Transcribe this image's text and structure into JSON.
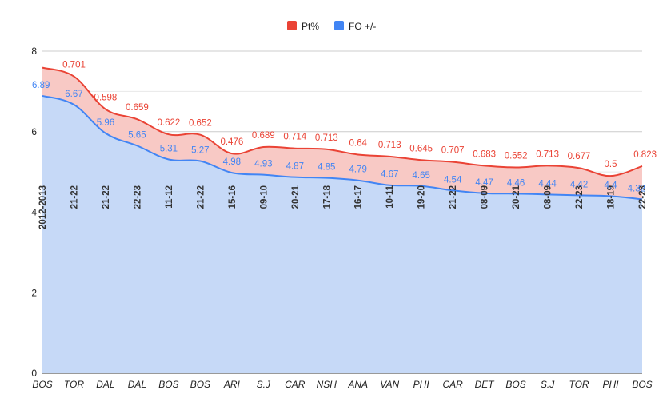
{
  "chart_data": {
    "type": "area",
    "stacked": true,
    "categories": [
      "BOS",
      "TOR",
      "DAL",
      "DAL",
      "BOS",
      "BOS",
      "ARI",
      "S.J",
      "CAR",
      "NSH",
      "ANA",
      "VAN",
      "PHI",
      "CAR",
      "DET",
      "BOS",
      "S.J",
      "TOR",
      "PHI",
      "BOS"
    ],
    "season_labels": [
      "2012-2013",
      "21-22",
      "21-22",
      "22-23",
      "11-12",
      "21-22",
      "15-16",
      "09-10",
      "20-21",
      "17-18",
      "16-17",
      "10-11",
      "19-20",
      "21-22",
      "08-09",
      "20-21",
      "08-09",
      "22-23",
      "18-19",
      "22-23"
    ],
    "series": [
      {
        "name": "Pt%",
        "color": "#ea4335",
        "fill": "#f8c9c5",
        "values": [
          0.701,
          0.701,
          0.598,
          0.659,
          0.622,
          0.652,
          0.476,
          0.689,
          0.714,
          0.713,
          0.64,
          0.713,
          0.645,
          0.707,
          0.683,
          0.652,
          0.713,
          0.677,
          0.5,
          0.823
        ],
        "data_labels": [
          "",
          "0.701",
          "0.598",
          "0.659",
          "0.622",
          "0.652",
          "0.476",
          "0.689",
          "0.714",
          "0.713",
          "0.64",
          "0.713",
          "0.645",
          "0.707",
          "0.683",
          "0.652",
          "0.713",
          "0.677",
          "0.5",
          "0.823"
        ]
      },
      {
        "name": "FO +/-",
        "color": "#4285f4",
        "fill": "#c6d9f7",
        "values": [
          6.89,
          6.67,
          5.96,
          5.65,
          5.31,
          5.27,
          4.98,
          4.93,
          4.87,
          4.85,
          4.79,
          4.67,
          4.65,
          4.54,
          4.47,
          4.46,
          4.44,
          4.42,
          4.4,
          4.32
        ],
        "data_labels": [
          "6.89",
          "6.67",
          "5.96",
          "5.65",
          "5.31",
          "5.27",
          "4.98",
          "4.93",
          "4.87",
          "4.85",
          "4.79",
          "4.67",
          "4.65",
          "4.54",
          "4.47",
          "4.46",
          "4.44",
          "4.42",
          "4.4",
          "4.32"
        ]
      }
    ],
    "ylim": [
      0,
      8
    ],
    "yticks": [
      "0",
      "2",
      "4",
      "6",
      "8"
    ],
    "legend_position": "top",
    "grid": true
  }
}
